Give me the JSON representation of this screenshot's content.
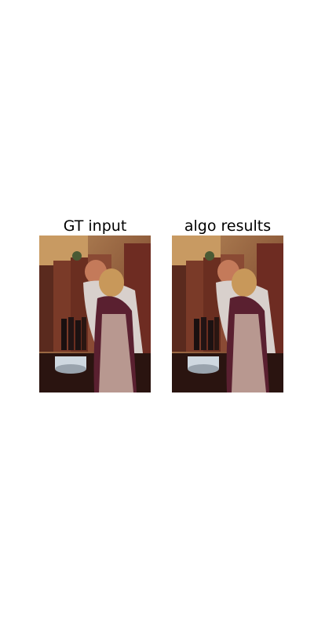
{
  "figure": {
    "panels": [
      {
        "title": "GT input"
      },
      {
        "title": "algo results"
      }
    ]
  }
}
